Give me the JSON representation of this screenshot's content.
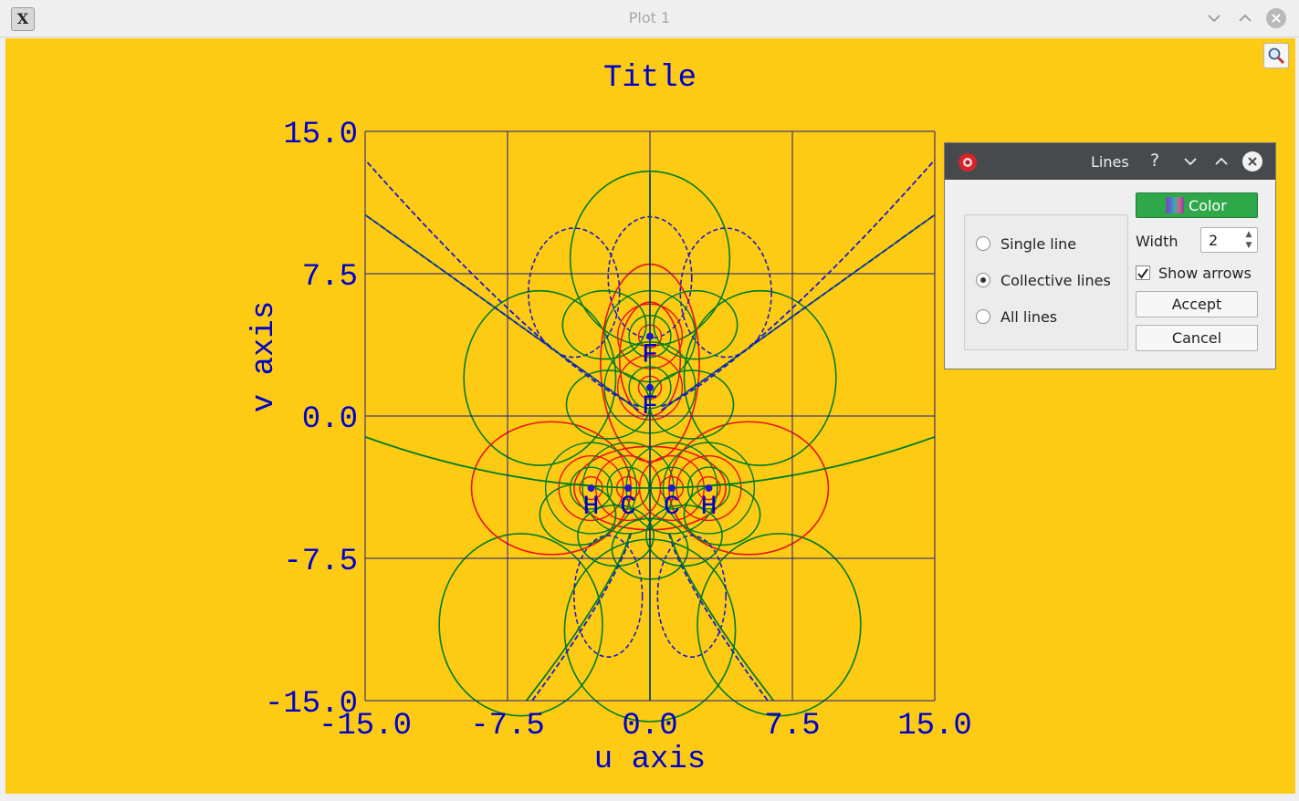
{
  "window": {
    "title": "Plot 1",
    "app_icon": "x-icon",
    "buttons": [
      "minimize-chevron-icon",
      "maximize-chevron-icon",
      "close-circle-icon"
    ]
  },
  "colors": {
    "plot_background": "#fdcb14",
    "text": "#0000cc",
    "field_lines": "#007d1f",
    "equipotential_lines": "#e8121a",
    "dashed_lines": "#1a1acc",
    "grid": "#1a1a8a"
  },
  "chart_data": {
    "type": "line",
    "title": "Title",
    "xlabel": "u axis",
    "ylabel": "v axis",
    "xlim": [
      -15.0,
      15.0
    ],
    "ylim": [
      -15.0,
      15.0
    ],
    "xticks": [
      "-15.0",
      "-7.5",
      "0.0",
      "7.5",
      "15.0"
    ],
    "yticks": [
      "15.0",
      "7.5",
      "0.0",
      "-7.5",
      "-15.0"
    ],
    "grid": true,
    "atoms": [
      {
        "label": "F",
        "x": 0.0,
        "y": 4.2
      },
      {
        "label": "F",
        "x": 0.0,
        "y": 1.5
      },
      {
        "label": "H",
        "x": -3.1,
        "y": -3.8
      },
      {
        "label": "C",
        "x": -1.15,
        "y": -3.8
      },
      {
        "label": "C",
        "x": 1.15,
        "y": -3.8
      },
      {
        "label": "H",
        "x": 3.1,
        "y": -3.8
      }
    ]
  },
  "dialog": {
    "title": "Lines",
    "help": "?",
    "radio_options": [
      {
        "label": "Single line",
        "checked": false
      },
      {
        "label": "Collective lines",
        "checked": true
      },
      {
        "label": "All lines",
        "checked": false
      }
    ],
    "color_button": "Color",
    "width_label": "Width",
    "width_value": "2",
    "show_arrows_label": "Show arrows",
    "show_arrows_checked": true,
    "accept": "Accept",
    "cancel": "Cancel"
  }
}
